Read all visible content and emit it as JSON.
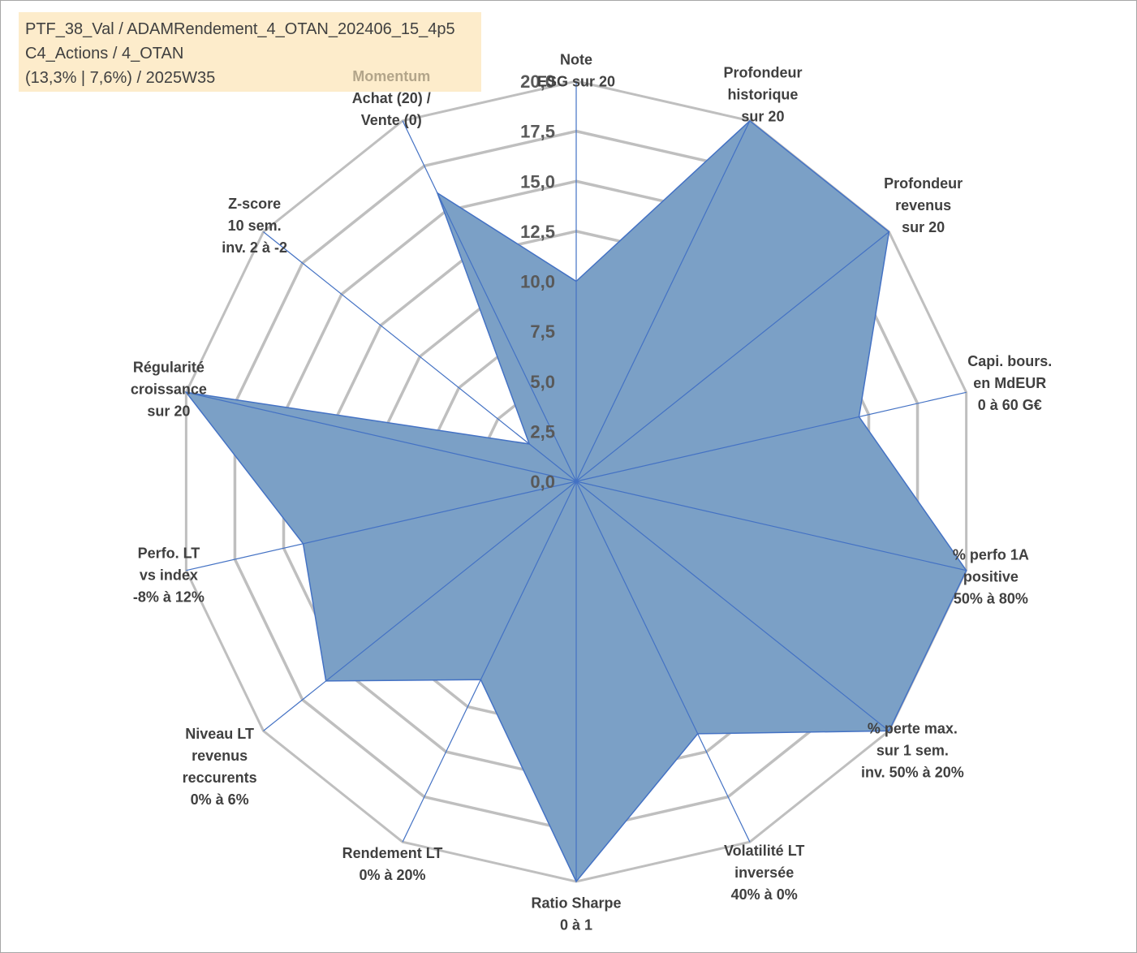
{
  "info": {
    "line1": "PTF_38_Val / ADAMRendement_4_OTAN_202406_15_4p5",
    "line2": "C4_Actions / 4_OTAN",
    "line3": "(13,3% | 7,6%) / 2025W35"
  },
  "colors": {
    "fill": "#7ba0c6",
    "stroke": "#4472c4",
    "grid": "#bfbfbf",
    "label": "#404040",
    "momentum": "#b3a58a",
    "info_bg": "#fdeccb"
  },
  "chart_data": {
    "type": "radar",
    "range": [
      0,
      20
    ],
    "tick_labels": [
      "0,0",
      "2,5",
      "5,0",
      "7,5",
      "10,0",
      "12,5",
      "15,0",
      "17,5",
      "20,0"
    ],
    "axes": [
      {
        "label_lines": [
          "Note",
          "ESG sur 20"
        ]
      },
      {
        "label_lines": [
          "Profondeur",
          "historique",
          "sur 20"
        ]
      },
      {
        "label_lines": [
          "Profondeur",
          "revenus",
          "sur 20"
        ]
      },
      {
        "label_lines": [
          "Capi. bours.",
          "en MdEUR",
          "0 à 60 G€"
        ]
      },
      {
        "label_lines": [
          "% perfo 1A",
          "positive",
          "50% à 80%"
        ]
      },
      {
        "label_lines": [
          "% perte max.",
          "sur 1 sem.",
          "inv. 50% à 20%"
        ]
      },
      {
        "label_lines": [
          "Volatilité LT",
          "inversée",
          "40% à 0%"
        ]
      },
      {
        "label_lines": [
          "Ratio Sharpe",
          "0 à 1"
        ]
      },
      {
        "label_lines": [
          "Rendement LT",
          "0% à 20%"
        ]
      },
      {
        "label_lines": [
          "Niveau LT",
          "revenus",
          "reccurents",
          "0% à 6%"
        ]
      },
      {
        "label_lines": [
          "Perfo. LT",
          "vs index",
          "-8% à 12%"
        ]
      },
      {
        "label_lines": [
          "Régularité",
          "croissance",
          "sur 20"
        ]
      },
      {
        "label_lines": [
          "Z-score",
          "10 sem.",
          "inv. 2 à -2"
        ]
      },
      {
        "label_lines": [
          "Momentum",
          "Achat (20) /",
          "Vente (0)"
        ]
      }
    ],
    "series": [
      {
        "values": [
          10.0,
          20.0,
          20.0,
          14.5,
          20.0,
          20.0,
          14.0,
          20.0,
          11.0,
          16.0,
          14.0,
          20.0,
          3.0,
          16.0
        ]
      }
    ]
  }
}
